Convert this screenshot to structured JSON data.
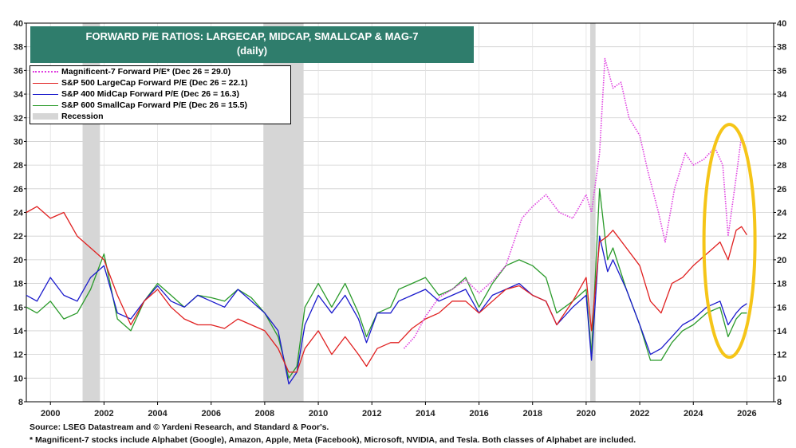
{
  "chart_data": {
    "type": "line",
    "title": "FORWARD P/E RATIOS: LARGECAP, MIDCAP, SMALLCAP & MAG-7",
    "subtitle": "(daily)",
    "xlabel": "",
    "ylabel": "",
    "xlim": [
      1999.1,
      2027.0
    ],
    "ylim": [
      8,
      40
    ],
    "y_ticks": [
      8,
      10,
      12,
      14,
      16,
      18,
      20,
      22,
      24,
      26,
      28,
      30,
      32,
      34,
      36,
      38,
      40
    ],
    "x_tick_labels": [
      "2000",
      "2002",
      "2004",
      "2006",
      "2008",
      "2010",
      "2012",
      "2014",
      "2016",
      "2018",
      "2020",
      "2022",
      "2024",
      "2026"
    ],
    "x_tick_values": [
      2000,
      2002,
      2004,
      2006,
      2008,
      2010,
      2012,
      2014,
      2016,
      2018,
      2020,
      2022,
      2024,
      2026
    ],
    "recessions": [
      [
        2001.2,
        2001.85
      ],
      [
        2007.95,
        2009.45
      ],
      [
        2020.15,
        2020.35
      ]
    ],
    "series": [
      {
        "name": "Magnificent-7 Forward P/E* (Dec 26 = 29.0)",
        "color": "#e040e0",
        "style": "dotted",
        "x": [
          2013.2,
          2013.6,
          2014.0,
          2014.5,
          2015.0,
          2015.5,
          2016.0,
          2016.5,
          2017.0,
          2017.3,
          2017.6,
          2018.0,
          2018.5,
          2019.0,
          2019.5,
          2020.0,
          2020.2,
          2020.5,
          2020.7,
          2021.0,
          2021.3,
          2021.6,
          2022.0,
          2022.3,
          2022.7,
          2022.95,
          2023.3,
          2023.7,
          2024.0,
          2024.4,
          2024.8,
          2025.1,
          2025.3,
          2025.6,
          2025.8,
          2026.0
        ],
        "values": [
          12.5,
          13.5,
          15.2,
          16.8,
          17.5,
          18.3,
          17.2,
          18.2,
          19.5,
          21.5,
          23.5,
          24.5,
          25.5,
          24.0,
          23.5,
          25.5,
          24.0,
          29.0,
          37.0,
          34.5,
          35.0,
          32.0,
          30.5,
          27.5,
          24.0,
          21.5,
          26.0,
          29.0,
          28.0,
          28.5,
          29.5,
          28.0,
          22.0,
          27.0,
          30.5,
          29.0
        ]
      },
      {
        "name": "S&P 500 LargeCap Forward P/E (Dec 26 = 22.1)",
        "color": "#e02020",
        "style": "solid",
        "x": [
          1999.1,
          1999.5,
          2000.0,
          2000.5,
          2001.0,
          2001.5,
          2002.0,
          2002.5,
          2003.0,
          2003.5,
          2004.0,
          2004.5,
          2005.0,
          2005.5,
          2006.0,
          2006.5,
          2007.0,
          2007.5,
          2008.0,
          2008.5,
          2008.9,
          2009.2,
          2009.5,
          2010.0,
          2010.5,
          2011.0,
          2011.5,
          2011.8,
          2012.2,
          2012.7,
          2013.0,
          2013.5,
          2014.0,
          2014.5,
          2015.0,
          2015.5,
          2016.0,
          2016.5,
          2017.0,
          2017.5,
          2018.0,
          2018.5,
          2018.9,
          2019.5,
          2020.0,
          2020.2,
          2020.5,
          2020.8,
          2021.0,
          2021.5,
          2022.0,
          2022.4,
          2022.8,
          2023.2,
          2023.6,
          2024.0,
          2024.5,
          2025.0,
          2025.3,
          2025.6,
          2025.8,
          2026.0
        ],
        "values": [
          24.0,
          24.5,
          23.5,
          24.0,
          22.0,
          21.0,
          20.0,
          17.0,
          14.5,
          16.5,
          17.5,
          16.0,
          15.0,
          14.5,
          14.5,
          14.2,
          15.0,
          14.5,
          14.0,
          12.5,
          10.5,
          10.5,
          12.5,
          14.0,
          12.0,
          13.5,
          12.0,
          11.0,
          12.5,
          13.0,
          13.0,
          14.2,
          15.0,
          15.5,
          16.5,
          16.5,
          15.5,
          16.5,
          17.5,
          17.8,
          17.0,
          16.5,
          14.5,
          16.5,
          18.5,
          14.0,
          21.5,
          22.0,
          22.5,
          21.0,
          19.5,
          16.5,
          15.5,
          18.0,
          18.5,
          19.5,
          20.5,
          21.5,
          20.0,
          22.5,
          22.8,
          22.1
        ]
      },
      {
        "name": "S&P 400 MidCap Forward P/E (Dec 26 = 16.3)",
        "color": "#1a1acc",
        "style": "solid",
        "x": [
          1999.1,
          1999.5,
          2000.0,
          2000.5,
          2001.0,
          2001.5,
          2002.0,
          2002.5,
          2003.0,
          2003.5,
          2004.0,
          2004.5,
          2005.0,
          2005.5,
          2006.0,
          2006.5,
          2007.0,
          2007.5,
          2008.0,
          2008.5,
          2008.9,
          2009.2,
          2009.5,
          2010.0,
          2010.5,
          2011.0,
          2011.5,
          2011.8,
          2012.2,
          2012.7,
          2013.0,
          2013.5,
          2014.0,
          2014.5,
          2015.0,
          2015.5,
          2016.0,
          2016.5,
          2017.0,
          2017.5,
          2018.0,
          2018.5,
          2018.9,
          2019.5,
          2020.0,
          2020.2,
          2020.5,
          2020.8,
          2021.0,
          2021.5,
          2022.0,
          2022.4,
          2022.8,
          2023.2,
          2023.6,
          2024.0,
          2024.5,
          2025.0,
          2025.3,
          2025.6,
          2025.8,
          2026.0
        ],
        "values": [
          17.0,
          16.5,
          18.5,
          17.0,
          16.5,
          18.5,
          19.5,
          15.5,
          15.0,
          16.5,
          17.8,
          16.5,
          16.0,
          17.0,
          16.5,
          16.0,
          17.5,
          16.5,
          15.5,
          14.0,
          9.5,
          10.5,
          14.5,
          17.0,
          15.5,
          17.0,
          15.0,
          13.0,
          15.5,
          15.5,
          16.5,
          17.0,
          17.5,
          16.5,
          17.0,
          17.5,
          15.5,
          17.0,
          17.5,
          18.0,
          17.0,
          16.5,
          14.5,
          16.0,
          17.0,
          11.5,
          22.0,
          19.0,
          20.0,
          17.5,
          14.5,
          12.0,
          12.5,
          13.5,
          14.5,
          15.0,
          16.0,
          16.5,
          14.5,
          15.5,
          16.0,
          16.3
        ]
      },
      {
        "name": "S&P 600 SmallCap Forward P/E (Dec 26 = 15.5)",
        "color": "#2a9a2a",
        "style": "solid",
        "x": [
          1999.1,
          1999.5,
          2000.0,
          2000.5,
          2001.0,
          2001.5,
          2002.0,
          2002.5,
          2003.0,
          2003.5,
          2004.0,
          2004.5,
          2005.0,
          2005.5,
          2006.0,
          2006.5,
          2007.0,
          2007.5,
          2008.0,
          2008.5,
          2008.9,
          2009.2,
          2009.5,
          2010.0,
          2010.5,
          2011.0,
          2011.5,
          2011.8,
          2012.2,
          2012.7,
          2013.0,
          2013.5,
          2014.0,
          2014.5,
          2015.0,
          2015.5,
          2016.0,
          2016.5,
          2017.0,
          2017.5,
          2018.0,
          2018.5,
          2018.9,
          2019.5,
          2020.0,
          2020.2,
          2020.5,
          2020.8,
          2021.0,
          2021.5,
          2022.0,
          2022.4,
          2022.8,
          2023.2,
          2023.6,
          2024.0,
          2024.5,
          2025.0,
          2025.3,
          2025.6,
          2025.8,
          2026.0
        ],
        "values": [
          16.0,
          15.5,
          16.5,
          15.0,
          15.5,
          17.5,
          20.5,
          15.0,
          14.0,
          16.5,
          18.0,
          17.0,
          16.0,
          17.0,
          16.8,
          16.5,
          17.5,
          16.8,
          15.5,
          13.5,
          10.0,
          11.0,
          16.0,
          18.0,
          16.0,
          18.0,
          15.5,
          13.5,
          15.5,
          16.0,
          17.5,
          18.0,
          18.5,
          17.0,
          17.5,
          18.5,
          16.0,
          18.0,
          19.5,
          20.0,
          19.5,
          18.5,
          15.5,
          16.5,
          17.5,
          12.0,
          26.0,
          20.0,
          21.0,
          17.5,
          14.5,
          11.5,
          11.5,
          13.0,
          14.0,
          14.5,
          15.5,
          16.0,
          13.5,
          15.0,
          15.5,
          15.5
        ]
      }
    ],
    "legend_extra": "Recession",
    "annotation": "yellow ellipse highlighting 2025-2026"
  },
  "legend": {
    "mag7": "Magnificent-7 Forward P/E* (Dec 26 = 29.0)",
    "spx": "S&P 500 LargeCap Forward P/E (Dec 26 = 22.1)",
    "mid": "S&P 400 MidCap Forward P/E (Dec 26 = 16.3)",
    "small": "S&P 600 SmallCap Forward P/E (Dec 26 = 15.5)",
    "recession": "Recession"
  },
  "title": {
    "line1": "FORWARD P/E RATIOS: LARGECAP, MIDCAP, SMALLCAP & MAG-7",
    "line2": "(daily)"
  },
  "footnotes": {
    "source": "Source: LSEG Datastream and © Yardeni Research, and Standard & Poor's.",
    "note": "* Magnificent-7 stocks include Alphabet (Google), Amazon, Apple, Meta (Facebook), Microsoft, NVIDIA, and Tesla. Both classes of Alphabet are included."
  },
  "colors": {
    "title_bg": "#2f7d6c",
    "recession": "#d6d6d6",
    "highlight": "#f5c518"
  }
}
